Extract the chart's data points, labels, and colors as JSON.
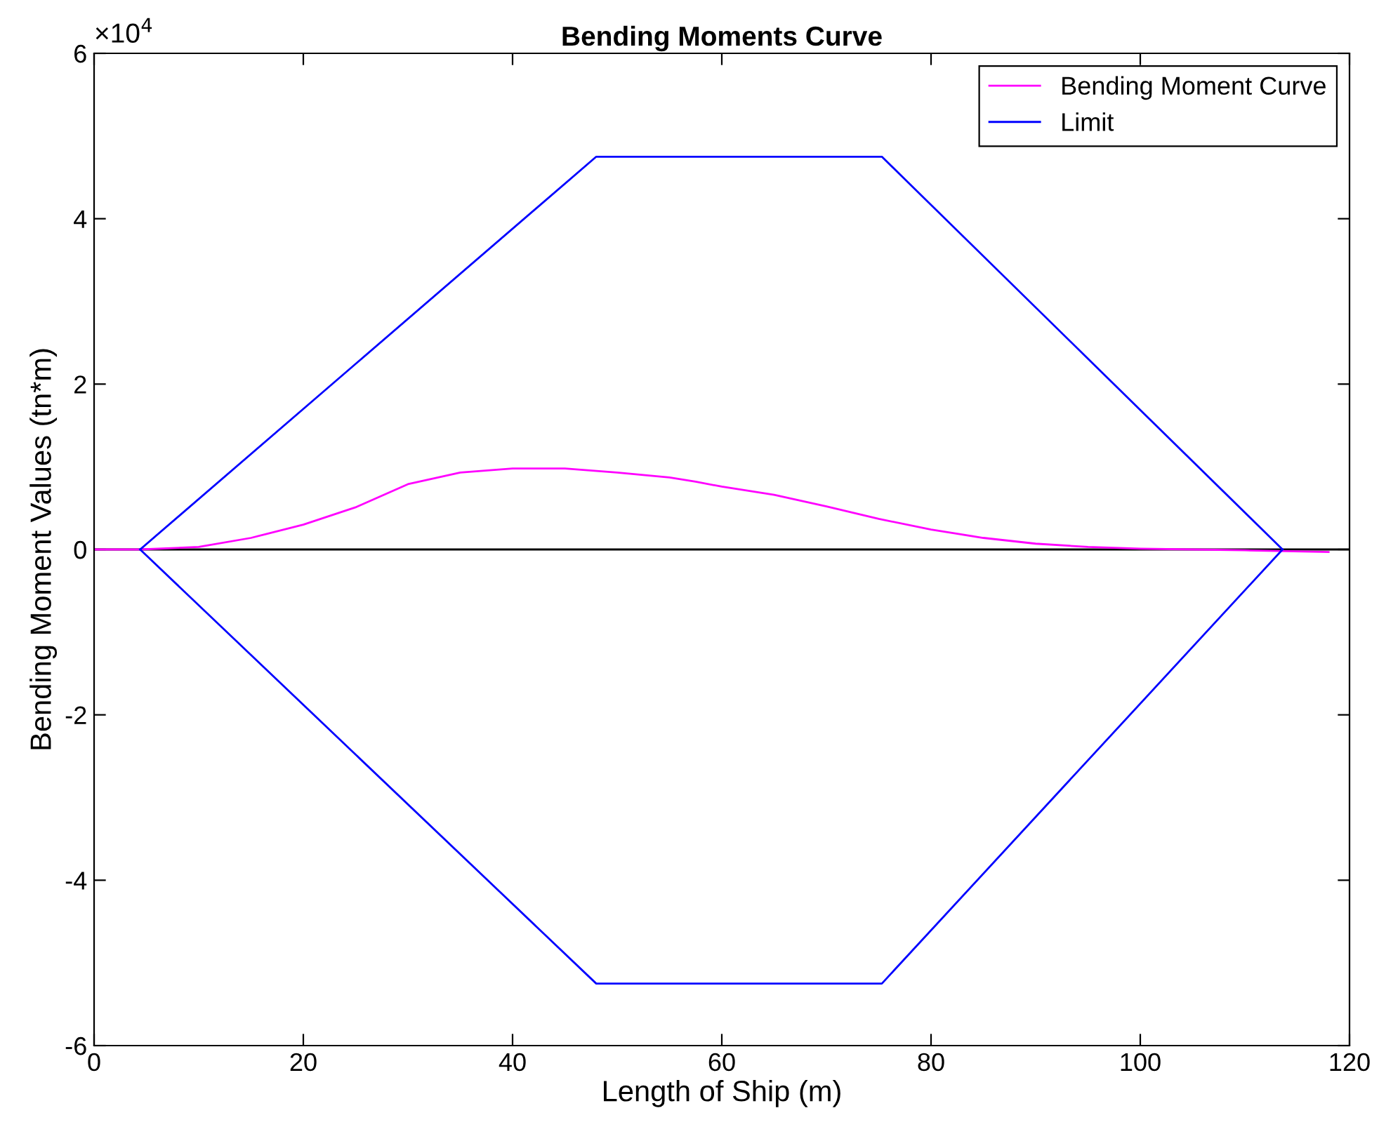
{
  "chart_data": {
    "type": "line",
    "title": "Bending Moments Curve",
    "xlabel": "Length of Ship (m)",
    "ylabel": "Bending Moment Values (tn*m)",
    "annotations": [
      "×10$^{4}$"
    ],
    "xlim": [
      0,
      120
    ],
    "xticks": [
      0,
      20,
      40,
      60,
      80,
      100,
      120
    ],
    "ylim": [
      -6,
      6
    ],
    "yticks": [
      -6,
      -4,
      -2,
      0,
      2,
      4,
      6
    ],
    "grid": false,
    "legend": "top right",
    "marker": "none",
    "line_style": "solid",
    "ref_lines": [
      {
        "axis": "y",
        "value": 0,
        "label": null,
        "color": "#000000"
      }
    ],
    "series": [
      {
        "name": "Bending Moment Curve",
        "color": "#ff00ff",
        "x": [
          0,
          4.4,
          10,
          15,
          20,
          25,
          30,
          35,
          40,
          45,
          50,
          55,
          57.5,
          60,
          65,
          70,
          75,
          80,
          85,
          90,
          95,
          100,
          105,
          110,
          118
        ],
        "values": [
          0,
          0,
          0.03,
          0.14,
          0.3,
          0.51,
          0.79,
          0.93,
          0.98,
          0.98,
          0.93,
          0.87,
          0.82,
          0.76,
          0.66,
          0.52,
          0.37,
          0.24,
          0.14,
          0.07,
          0.03,
          0.01,
          0,
          -0.01,
          -0.03
        ]
      },
      {
        "name": "Limit",
        "color": "#0000ff",
        "x": [
          4.4,
          48,
          75.3,
          113.6
        ],
        "values": [
          0,
          4.75,
          4.75,
          0
        ]
      },
      {
        "color": "#0000ff",
        "x": [
          4.4,
          48,
          75.3,
          113.6
        ],
        "values": [
          0,
          -5.25,
          -5.25,
          0
        ]
      }
    ]
  }
}
